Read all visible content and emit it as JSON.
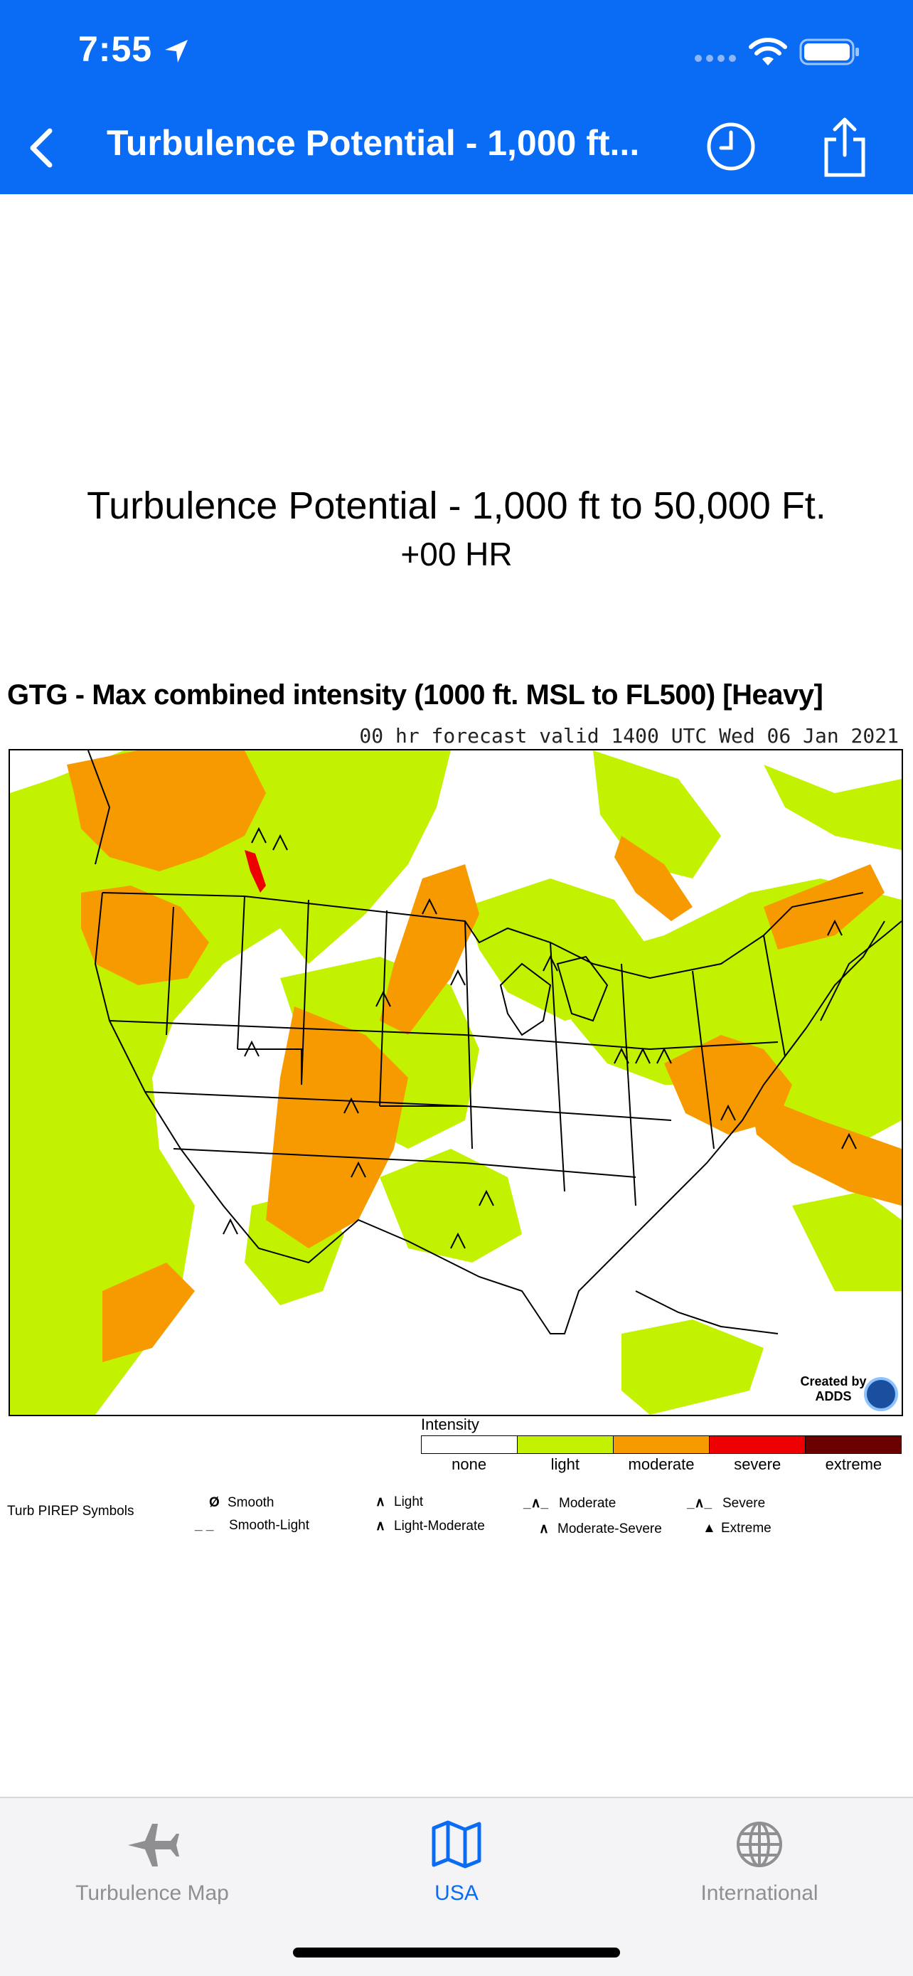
{
  "status": {
    "time": "7:55"
  },
  "nav": {
    "title": "Turbulence Potential - 1,000 ft..."
  },
  "page": {
    "title": "Turbulence Potential - 1,000 ft to 50,000 Ft.",
    "subtitle": "+00 HR"
  },
  "chart": {
    "heading": "GTG - Max combined intensity (1000 ft. MSL to FL500) [Heavy]",
    "valid": "00 hr forecast valid 1400 UTC Wed 06 Jan 2021",
    "credit_line1": "Created by",
    "credit_line2": "ADDS"
  },
  "legend": {
    "label": "Intensity",
    "levels": [
      "none",
      "light",
      "moderate",
      "severe",
      "extreme"
    ],
    "colors": [
      "#ffffff",
      "#c3f200",
      "#f79a00",
      "#ee0000",
      "#6a0000"
    ]
  },
  "pirep": {
    "title": "Turb PIREP Symbols",
    "smooth": "Smooth",
    "smooth_light": "Smooth-Light",
    "light": "Light",
    "light_moderate": "Light-Moderate",
    "moderate": "Moderate",
    "moderate_severe": "Moderate-Severe",
    "severe": "Severe",
    "extreme": "Extreme"
  },
  "tabs": [
    {
      "label": "Turbulence Map",
      "icon": "airplane-icon"
    },
    {
      "label": "USA",
      "icon": "map-icon"
    },
    {
      "label": "International",
      "icon": "globe-icon"
    }
  ],
  "colors": {
    "accent": "#0a6cf5"
  }
}
